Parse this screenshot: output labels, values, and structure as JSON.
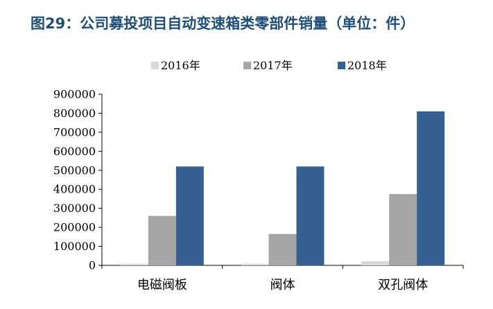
{
  "title": "图29：公司募投项目自动变速箱类零部件销量（单位：件）",
  "chart_data": {
    "type": "bar",
    "categories": [
      "电磁阀板",
      "阀体",
      "双孔阀体"
    ],
    "series": [
      {
        "name": "2016年",
        "color": "#d9d9d9",
        "values": [
          8000,
          8000,
          22000
        ]
      },
      {
        "name": "2017年",
        "color": "#a6a6a6",
        "values": [
          260000,
          165000,
          375000
        ]
      },
      {
        "name": "2018年",
        "color": "#376092",
        "values": [
          520000,
          520000,
          810000
        ]
      }
    ],
    "ylim": [
      0,
      900000
    ],
    "yticks": [
      "0",
      "100000",
      "200000",
      "300000",
      "400000",
      "500000",
      "600000",
      "700000",
      "800000",
      "900000"
    ],
    "grid": false,
    "legend_position": "top"
  }
}
